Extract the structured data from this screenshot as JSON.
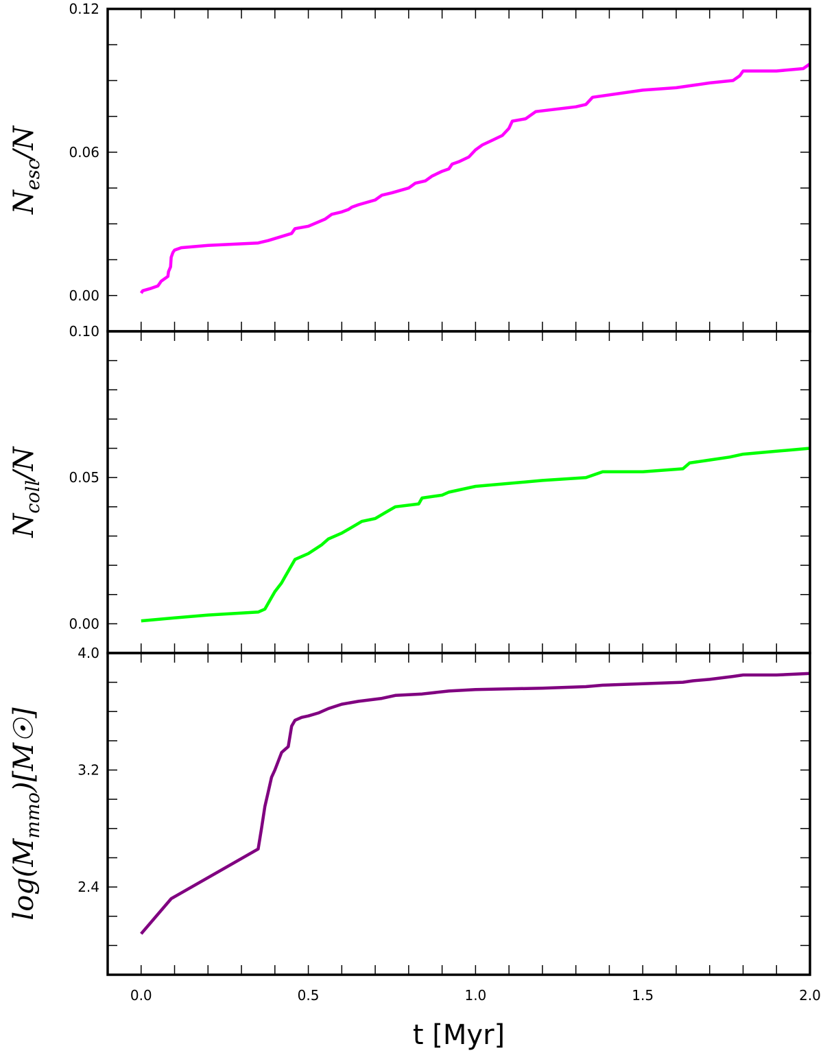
{
  "chart_data": [
    {
      "id": "esc",
      "type": "line",
      "ylabel": {
        "main": "N",
        "sub": "esc",
        "rest": "/N"
      },
      "xlim": [
        -0.1,
        2.0
      ],
      "ylim": [
        -0.015,
        0.12
      ],
      "ytick_values": [
        0.0,
        0.06,
        0.12
      ],
      "ytick_labels": [
        "0.00",
        "0.06",
        "0.12"
      ],
      "minor_y_step": 0.015,
      "color": "#ff00ff",
      "x": [
        0.0,
        0.005,
        0.03,
        0.05,
        0.055,
        0.06,
        0.08,
        0.082,
        0.088,
        0.09,
        0.095,
        0.1,
        0.12,
        0.2,
        0.35,
        0.38,
        0.45,
        0.46,
        0.5,
        0.55,
        0.57,
        0.6,
        0.62,
        0.63,
        0.65,
        0.7,
        0.72,
        0.75,
        0.8,
        0.82,
        0.85,
        0.87,
        0.9,
        0.92,
        0.93,
        0.95,
        0.98,
        1.0,
        1.02,
        1.05,
        1.08,
        1.1,
        1.11,
        1.15,
        1.18,
        1.3,
        1.33,
        1.35,
        1.5,
        1.6,
        1.7,
        1.77,
        1.79,
        1.8,
        1.9,
        1.98,
        2.0
      ],
      "y": [
        0.001,
        0.002,
        0.003,
        0.004,
        0.005,
        0.006,
        0.008,
        0.01,
        0.012,
        0.016,
        0.018,
        0.019,
        0.02,
        0.021,
        0.022,
        0.023,
        0.026,
        0.028,
        0.029,
        0.032,
        0.034,
        0.035,
        0.036,
        0.037,
        0.038,
        0.04,
        0.042,
        0.043,
        0.045,
        0.047,
        0.048,
        0.05,
        0.052,
        0.053,
        0.055,
        0.056,
        0.058,
        0.061,
        0.063,
        0.065,
        0.067,
        0.07,
        0.073,
        0.074,
        0.077,
        0.079,
        0.08,
        0.083,
        0.086,
        0.087,
        0.089,
        0.09,
        0.092,
        0.094,
        0.094,
        0.095,
        0.097
      ]
    },
    {
      "id": "coll",
      "type": "line",
      "ylabel": {
        "main": "N",
        "sub": "coll",
        "rest": "/N"
      },
      "xlim": [
        -0.1,
        2.0
      ],
      "ylim": [
        -0.01,
        0.1
      ],
      "ytick_values": [
        0.0,
        0.05,
        0.1
      ],
      "ytick_labels": [
        "0.00",
        "0.05",
        "0.10"
      ],
      "minor_y_step": 0.01,
      "color": "#00ff00",
      "x": [
        0.0,
        0.1,
        0.2,
        0.35,
        0.37,
        0.39,
        0.4,
        0.42,
        0.43,
        0.45,
        0.46,
        0.48,
        0.5,
        0.54,
        0.56,
        0.6,
        0.63,
        0.66,
        0.7,
        0.73,
        0.76,
        0.83,
        0.84,
        0.9,
        0.92,
        1.0,
        1.2,
        1.33,
        1.38,
        1.5,
        1.62,
        1.64,
        1.7,
        1.76,
        1.8,
        1.9,
        2.0
      ],
      "y": [
        0.001,
        0.002,
        0.003,
        0.004,
        0.005,
        0.009,
        0.011,
        0.014,
        0.016,
        0.02,
        0.022,
        0.023,
        0.024,
        0.027,
        0.029,
        0.031,
        0.033,
        0.035,
        0.036,
        0.038,
        0.04,
        0.041,
        0.043,
        0.044,
        0.045,
        0.047,
        0.049,
        0.05,
        0.052,
        0.052,
        0.053,
        0.055,
        0.056,
        0.057,
        0.058,
        0.059,
        0.06
      ]
    },
    {
      "id": "mmo",
      "type": "line",
      "ylabel": {
        "main": "log(M",
        "sub": "mmo",
        "rest": ")[M☉]"
      },
      "xlabel": "t [Myr]",
      "xlim": [
        -0.1,
        2.0
      ],
      "ylim": [
        1.8,
        4.0
      ],
      "ytick_values": [
        2.4,
        3.2,
        4.0
      ],
      "ytick_labels": [
        "2.4",
        "3.2",
        "4.0"
      ],
      "minor_y_step": 0.2,
      "xtick_values": [
        0.0,
        0.5,
        1.0,
        1.5,
        2.0
      ],
      "xtick_labels": [
        "0.0",
        "0.5",
        "1.0",
        "1.5",
        "2.0"
      ],
      "minor_x_step": 0.1,
      "color": "#800080",
      "x": [
        0.0,
        0.09,
        0.35,
        0.36,
        0.37,
        0.38,
        0.39,
        0.4,
        0.42,
        0.43,
        0.44,
        0.45,
        0.46,
        0.48,
        0.5,
        0.53,
        0.56,
        0.6,
        0.65,
        0.72,
        0.76,
        0.84,
        0.92,
        1.0,
        1.2,
        1.33,
        1.38,
        1.5,
        1.62,
        1.65,
        1.7,
        1.77,
        1.8,
        1.9,
        2.0
      ],
      "y": [
        2.08,
        2.32,
        2.66,
        2.8,
        2.95,
        3.05,
        3.15,
        3.2,
        3.32,
        3.34,
        3.36,
        3.5,
        3.54,
        3.56,
        3.57,
        3.59,
        3.62,
        3.65,
        3.67,
        3.69,
        3.71,
        3.72,
        3.74,
        3.75,
        3.76,
        3.77,
        3.78,
        3.79,
        3.8,
        3.81,
        3.82,
        3.84,
        3.85,
        3.85,
        3.86
      ]
    }
  ]
}
